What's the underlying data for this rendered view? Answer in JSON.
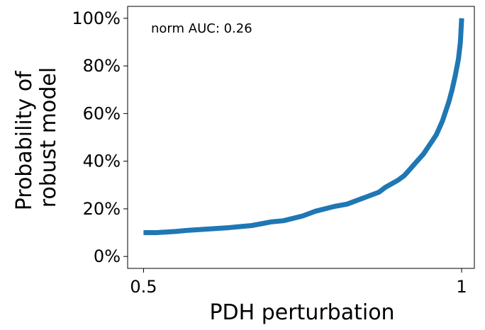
{
  "chart_data": {
    "type": "line",
    "xlabel": "PDH perturbation",
    "ylabel_lines": [
      "Probability of",
      "robust model"
    ],
    "annotation": "norm AUC: 0.26",
    "xlim": [
      0.475,
      1.02
    ],
    "ylim": [
      -0.05,
      1.05
    ],
    "x_ticks": [
      0.5,
      1
    ],
    "x_tick_labels": [
      "0.5",
      "1"
    ],
    "y_ticks": [
      0,
      0.2,
      0.4,
      0.6,
      0.8,
      1.0
    ],
    "y_tick_labels": [
      "0%",
      "20%",
      "40%",
      "60%",
      "80%",
      "100%"
    ],
    "grid": false,
    "line_color": "#1f77b4",
    "series": [
      {
        "x": [
          0.5,
          0.52,
          0.55,
          0.57,
          0.6,
          0.63,
          0.65,
          0.67,
          0.7,
          0.72,
          0.75,
          0.77,
          0.8,
          0.82,
          0.85,
          0.87,
          0.88,
          0.9,
          0.91,
          0.92,
          0.93,
          0.94,
          0.95,
          0.96,
          0.965,
          0.97,
          0.975,
          0.98,
          0.985,
          0.99,
          0.995,
          0.998,
          1.0
        ],
        "y": [
          0.1,
          0.1,
          0.105,
          0.11,
          0.115,
          0.12,
          0.125,
          0.13,
          0.145,
          0.15,
          0.17,
          0.19,
          0.21,
          0.22,
          0.25,
          0.27,
          0.29,
          0.32,
          0.34,
          0.37,
          0.4,
          0.43,
          0.47,
          0.51,
          0.54,
          0.57,
          0.61,
          0.65,
          0.7,
          0.76,
          0.83,
          0.9,
          1.0
        ]
      }
    ]
  }
}
